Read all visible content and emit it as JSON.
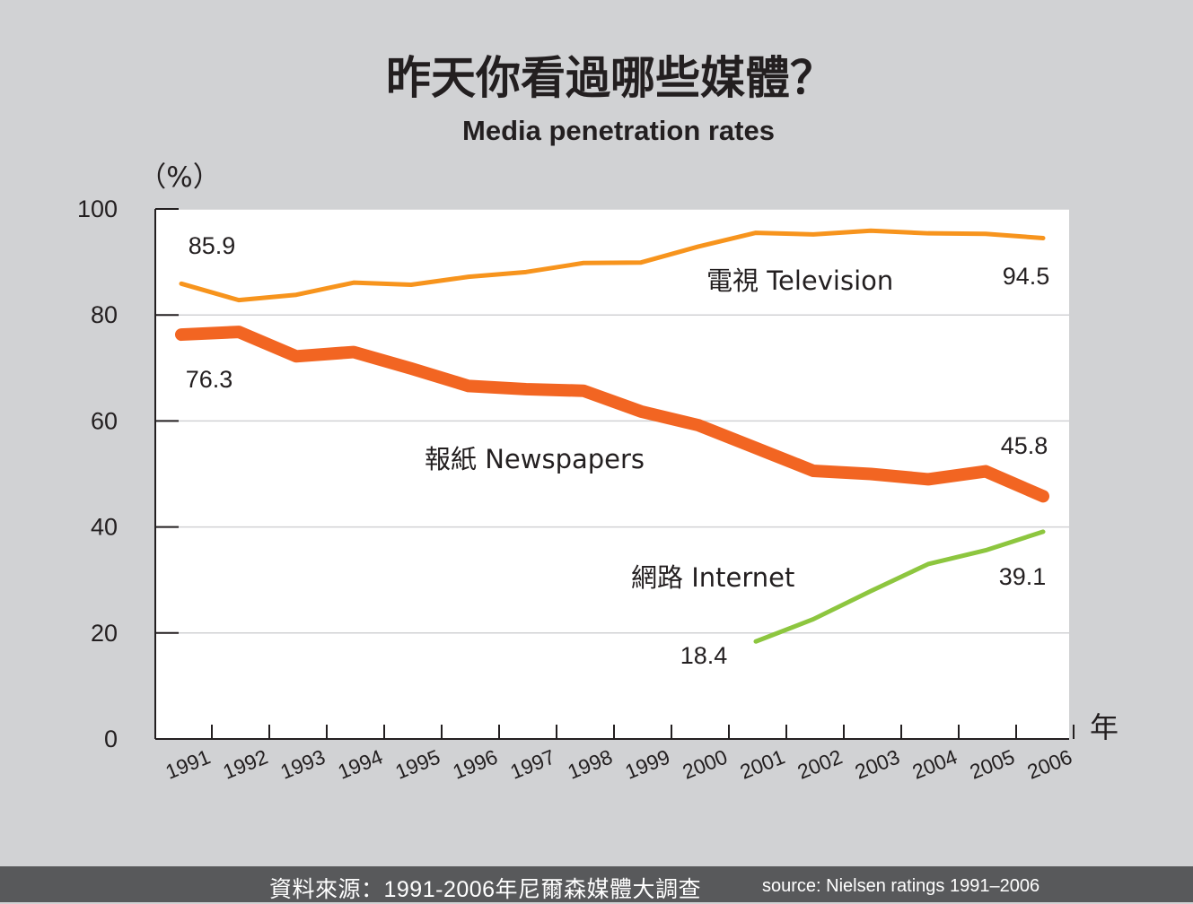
{
  "chart_data": {
    "type": "line",
    "title": "昨天你看過哪些媒體？",
    "subtitle": "Media penetration rates",
    "ylabel": "（%）",
    "xlabel": "年",
    "ylim": [
      0,
      100
    ],
    "yticks": [
      "0",
      "20",
      "40",
      "60",
      "80",
      "100"
    ],
    "categories": [
      "1991",
      "1992",
      "1993",
      "1994",
      "1995",
      "1996",
      "1997",
      "1998",
      "1999",
      "2000",
      "2001",
      "2002",
      "2003",
      "2004",
      "2005",
      "2006"
    ],
    "grid": true,
    "series": [
      {
        "name": "電視 Television",
        "color": "#f7941d",
        "values": [
          85.9,
          82.8,
          83.8,
          86.1,
          85.7,
          87.2,
          88.1,
          89.8,
          89.9,
          92.9,
          95.5,
          95.2,
          95.9,
          95.4,
          95.3,
          94.5
        ],
        "start_label": "85.9",
        "end_label": "94.5"
      },
      {
        "name": "報紙 Newspapers",
        "color": "#f26522",
        "values": [
          76.3,
          76.8,
          72.2,
          73.0,
          69.9,
          66.6,
          66.0,
          65.7,
          61.8,
          59.2,
          54.9,
          50.6,
          50.0,
          49.0,
          50.5,
          45.8
        ],
        "start_label": "76.3",
        "end_label": "45.8"
      },
      {
        "name": "網路 Internet",
        "color": "#8dc63f",
        "values": [
          null,
          null,
          null,
          null,
          null,
          null,
          null,
          null,
          null,
          null,
          18.4,
          22.6,
          27.9,
          33.0,
          35.6,
          39.1
        ],
        "start_label": "18.4",
        "end_label": "39.1"
      }
    ]
  },
  "footer": {
    "source_zh": "資料來源：1991-2006年尼爾森媒體大調查",
    "source_en": "source: Nielsen ratings 1991–2006"
  }
}
